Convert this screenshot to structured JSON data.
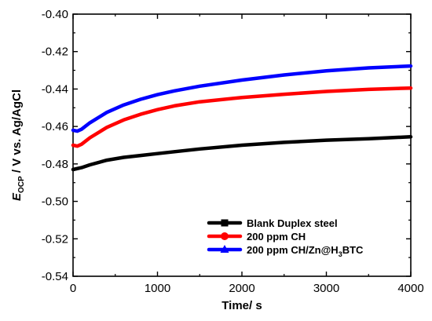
{
  "chart_data": {
    "type": "line",
    "x_axis": {
      "label": "Time/ s",
      "range": [
        0,
        4000
      ],
      "ticks": [
        0,
        1000,
        2000,
        3000,
        4000
      ],
      "tick_labels": [
        "0",
        "1000",
        "2000",
        "3000",
        "4000"
      ]
    },
    "y_axis": {
      "label_main": "E",
      "label_sub": "OCP",
      "label_rest": " / V vs. Ag/AgCl",
      "range": [
        -0.54,
        -0.4
      ],
      "ticks": [
        -0.54,
        -0.52,
        -0.5,
        -0.48,
        -0.46,
        -0.44,
        -0.42,
        -0.4
      ],
      "tick_labels": [
        "-0.54",
        "-0.52",
        "-0.50",
        "-0.48",
        "-0.46",
        "-0.44",
        "-0.42",
        "-0.40"
      ]
    },
    "grid": false,
    "legend_position": "bottom-right",
    "series": [
      {
        "name": "Blank Duplex steel",
        "legend_label": {
          "main": "Blank Duplex steel"
        },
        "color": "#000000",
        "marker": "square",
        "x": [
          0,
          100,
          200,
          400,
          600,
          800,
          1000,
          1200,
          1500,
          2000,
          2500,
          3000,
          3500,
          4000
        ],
        "y": [
          -0.483,
          -0.482,
          -0.4805,
          -0.478,
          -0.4765,
          -0.4755,
          -0.4745,
          -0.4735,
          -0.472,
          -0.47,
          -0.4685,
          -0.4673,
          -0.4665,
          -0.4655
        ]
      },
      {
        "name": "200 ppm CH",
        "legend_label": {
          "main": "200 ppm CH"
        },
        "color": "#ff0000",
        "marker": "circle",
        "x": [
          0,
          50,
          100,
          200,
          400,
          600,
          800,
          1000,
          1200,
          1500,
          2000,
          2500,
          3000,
          3500,
          4000
        ],
        "y": [
          -0.47,
          -0.4705,
          -0.4695,
          -0.466,
          -0.4605,
          -0.4565,
          -0.4535,
          -0.451,
          -0.449,
          -0.4468,
          -0.4445,
          -0.4428,
          -0.4413,
          -0.4402,
          -0.4395
        ]
      },
      {
        "name": "200 ppm CH/Zn@H3BTC",
        "legend_label": {
          "main": "200 ppm CH/Zn@H",
          "sub": "3",
          "tail": "BTC"
        },
        "color": "#0000ff",
        "marker": "triangle",
        "x": [
          0,
          50,
          100,
          200,
          400,
          600,
          800,
          1000,
          1200,
          1500,
          2000,
          2500,
          3000,
          3500,
          4000
        ],
        "y": [
          -0.462,
          -0.4625,
          -0.4615,
          -0.458,
          -0.4525,
          -0.4485,
          -0.4455,
          -0.443,
          -0.441,
          -0.4385,
          -0.4352,
          -0.4325,
          -0.4303,
          -0.4287,
          -0.4277
        ]
      }
    ]
  }
}
